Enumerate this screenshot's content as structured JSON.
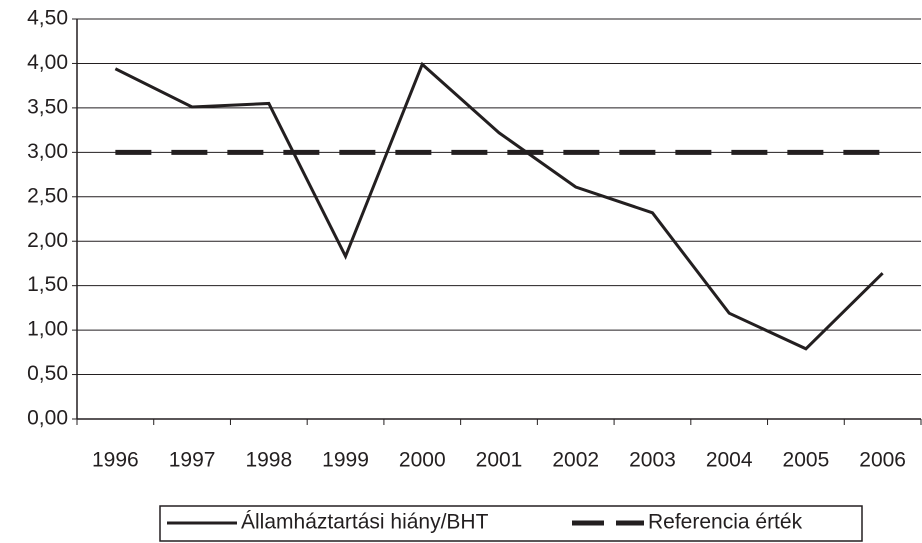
{
  "chart_data": {
    "type": "line",
    "categories": [
      "1996",
      "1997",
      "1998",
      "1999",
      "2000",
      "2001",
      "2002",
      "2003",
      "2004",
      "2005",
      "2006"
    ],
    "series": [
      {
        "name": "Államháztartási hiány/BHT",
        "color": "#231f20",
        "style": "solid",
        "values": [
          3.94,
          3.51,
          3.55,
          1.83,
          3.99,
          3.22,
          2.61,
          2.32,
          1.19,
          0.79,
          1.64
        ]
      },
      {
        "name": "Referencia érték",
        "color": "#231f20",
        "style": "dashed",
        "values": [
          3,
          3,
          3,
          3,
          3,
          3,
          3,
          3,
          3,
          3,
          3
        ]
      }
    ],
    "ylim": [
      0,
      4.5
    ],
    "yticks": [
      {
        "value": 0,
        "label": "0,00"
      },
      {
        "value": 0.5,
        "label": "0,50"
      },
      {
        "value": 1,
        "label": "1,00"
      },
      {
        "value": 1.5,
        "label": "1,50"
      },
      {
        "value": 2,
        "label": "2,00"
      },
      {
        "value": 2.5,
        "label": "2,50"
      },
      {
        "value": 3,
        "label": "3,00"
      },
      {
        "value": 3.5,
        "label": "3,50"
      },
      {
        "value": 4,
        "label": "4,00"
      },
      {
        "value": 4.5,
        "label": "4,50"
      }
    ],
    "grid": true,
    "legend": "bottom"
  }
}
